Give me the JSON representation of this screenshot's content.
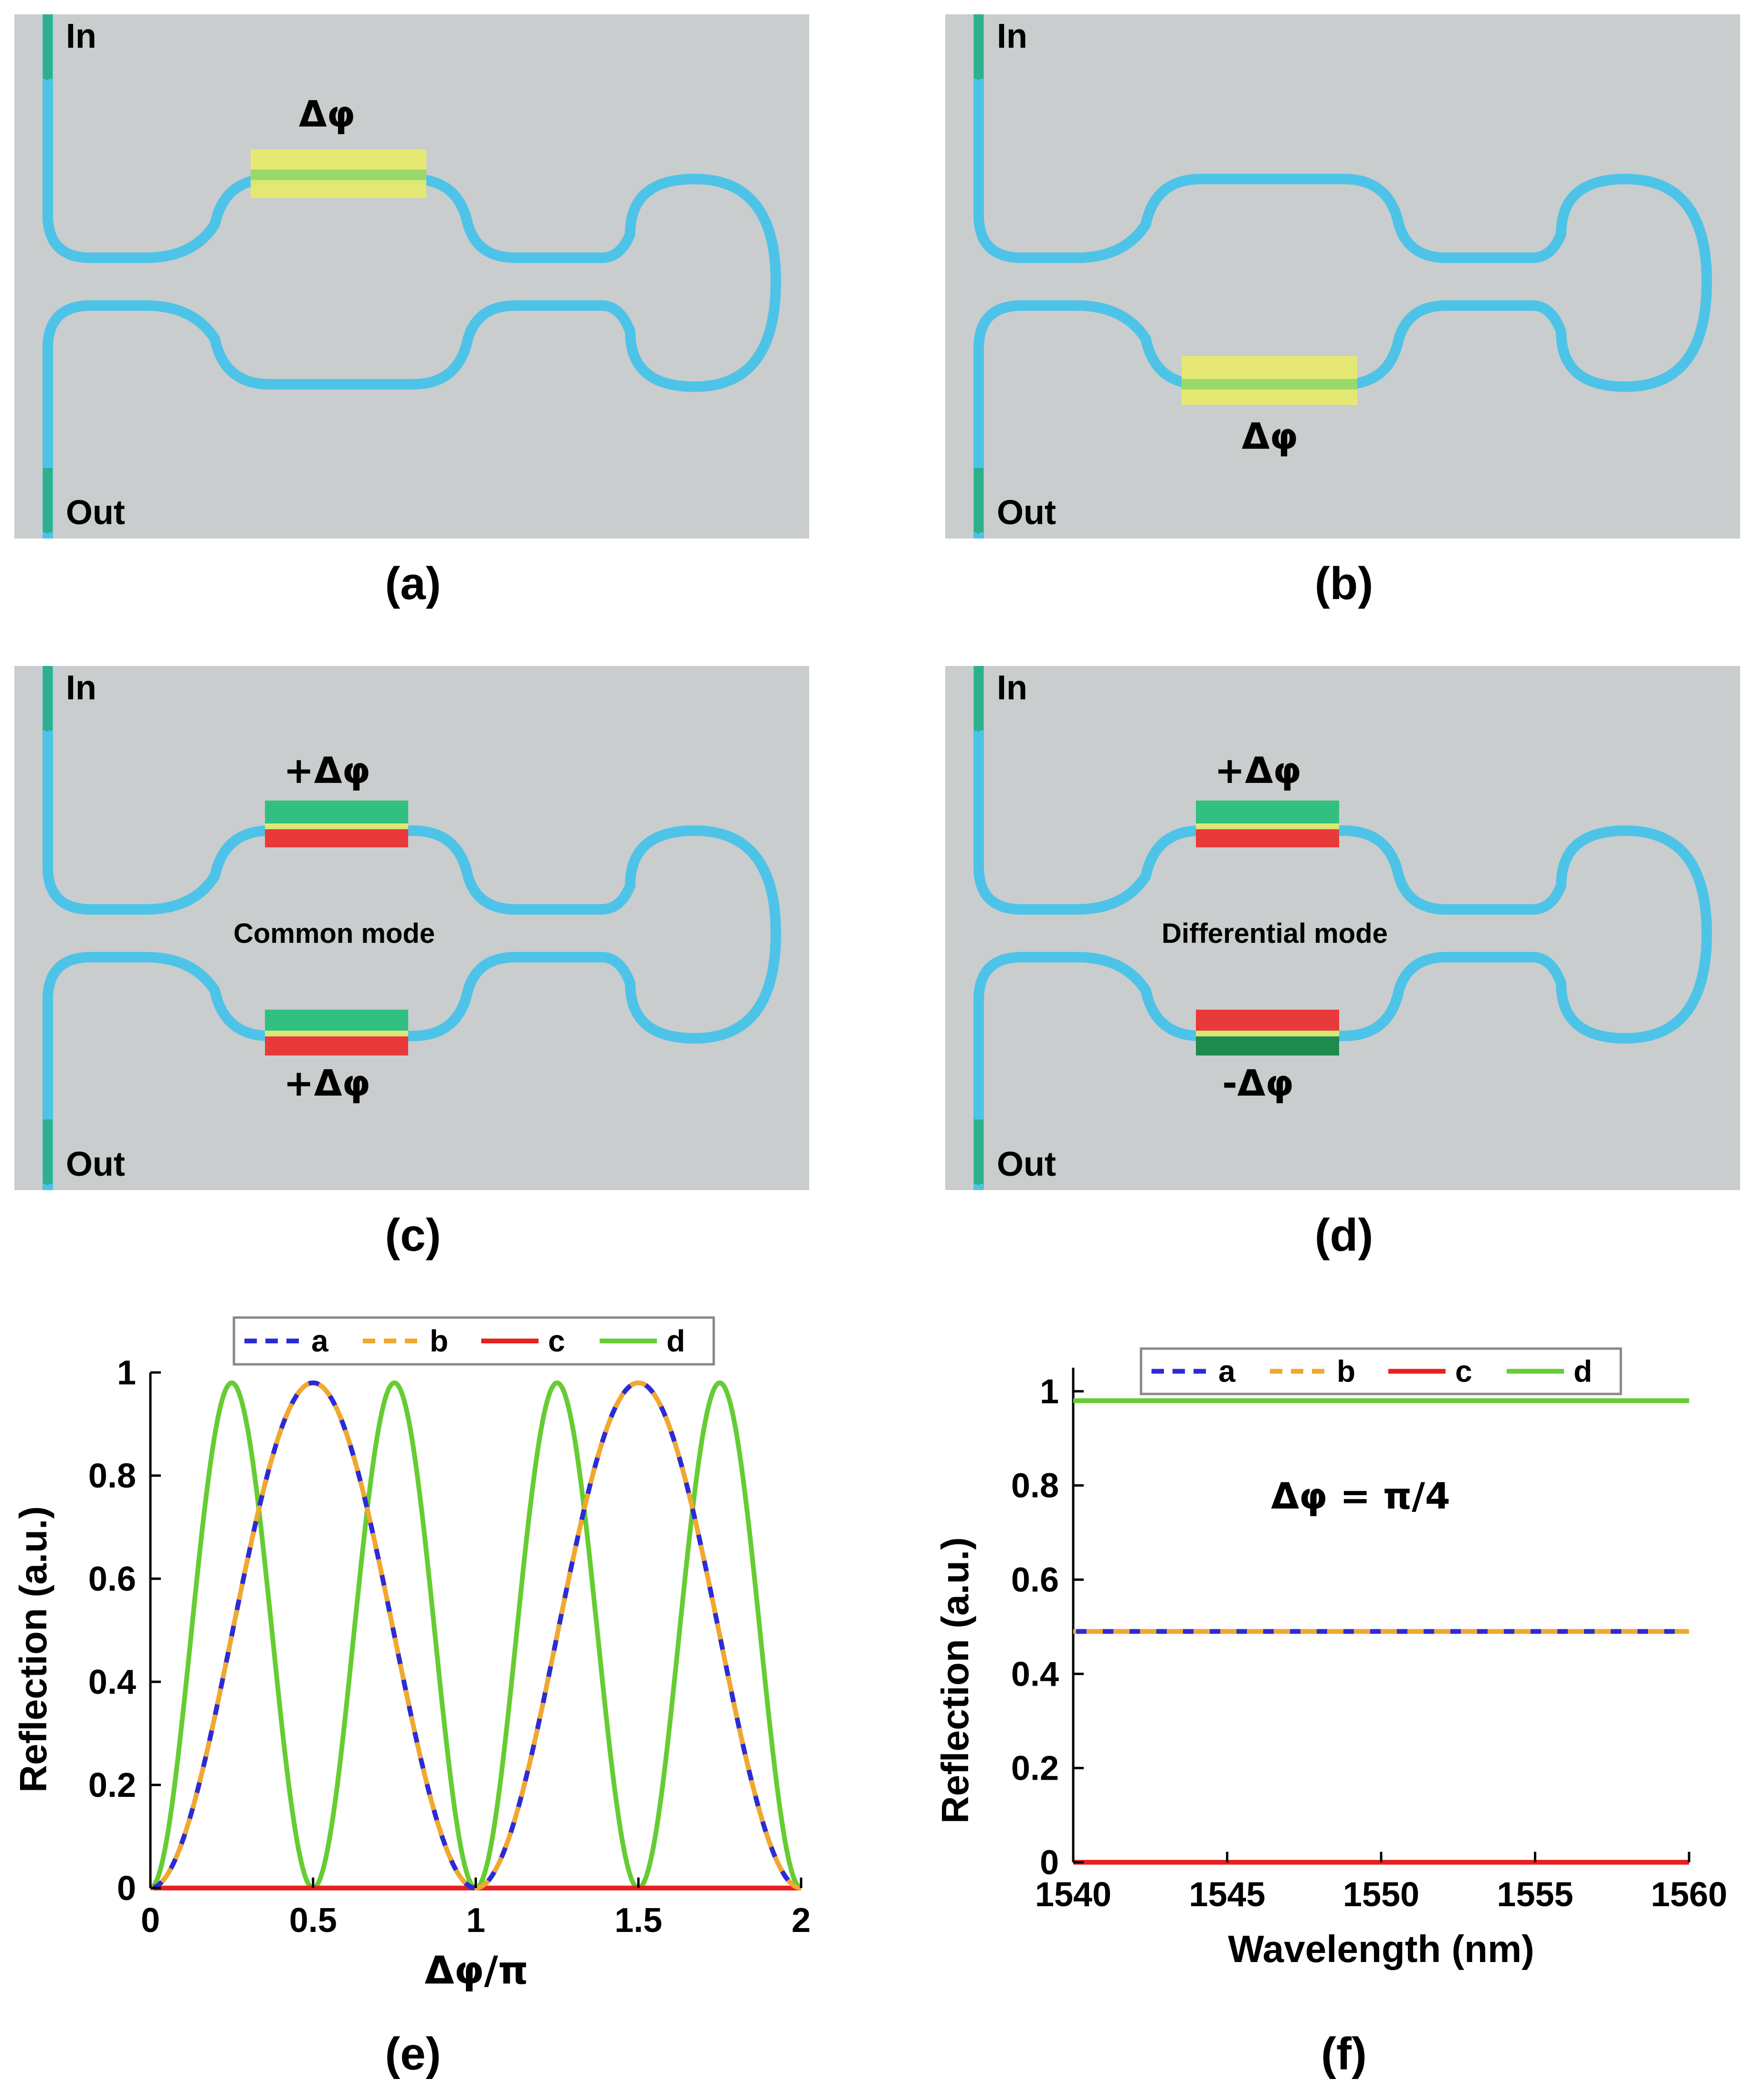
{
  "diagrams": [
    {
      "id": "a",
      "caption": "(a)",
      "in_label": "In",
      "out_label": "Out",
      "phase_top": "Δφ",
      "phase_bottom": "",
      "mode_label": ""
    },
    {
      "id": "b",
      "caption": "(b)",
      "in_label": "In",
      "out_label": "Out",
      "phase_top": "",
      "phase_bottom": "Δφ",
      "mode_label": ""
    },
    {
      "id": "c",
      "caption": "(c)",
      "in_label": "In",
      "out_label": "Out",
      "phase_top": "+Δφ",
      "phase_bottom": "+Δφ",
      "mode_label": "Common mode"
    },
    {
      "id": "d",
      "caption": "(d)",
      "in_label": "In",
      "out_label": "Out",
      "phase_top": "+Δφ",
      "phase_bottom": "-Δφ",
      "mode_label": "Differential mode"
    }
  ],
  "colors": {
    "panel_bg": "#c9cdce",
    "waveguide": "#4ec3e8",
    "arrow": "#2fb08c",
    "heater_yellow": "#e8ec6a",
    "heater_green": "#32c080",
    "heater_red": "#e83a3a",
    "series_a": "#2b2bd6",
    "series_b": "#f0a830",
    "series_c": "#e82020",
    "series_d": "#66cc33"
  },
  "chart_data": [
    {
      "id": "e",
      "type": "line",
      "caption": "(e)",
      "xlabel": "Δφ/π",
      "ylabel": "Reflection (a.u.)",
      "xlim": [
        0,
        2
      ],
      "ylim": [
        0,
        1
      ],
      "xticks": [
        "0",
        "0.5",
        "1",
        "1.5",
        "2"
      ],
      "yticks": [
        "0",
        "0.2",
        "0.4",
        "0.6",
        "0.8",
        "1"
      ],
      "legend": {
        "placement": "top",
        "entries": [
          "a",
          "b",
          "c",
          "d"
        ]
      },
      "series": [
        {
          "name": "a",
          "style": "dashed",
          "formula": "0.98*sin^2(pi*x)",
          "x": [
            0,
            0.25,
            0.5,
            0.75,
            1.0,
            1.25,
            1.5,
            1.75,
            2.0
          ],
          "y": [
            0,
            0.49,
            0.98,
            0.49,
            0,
            0.49,
            0.98,
            0.49,
            0
          ]
        },
        {
          "name": "b",
          "style": "dashed",
          "formula": "0.98*sin^2(pi*x)",
          "x": [
            0,
            0.25,
            0.5,
            0.75,
            1.0,
            1.25,
            1.5,
            1.75,
            2.0
          ],
          "y": [
            0,
            0.49,
            0.98,
            0.49,
            0,
            0.49,
            0.98,
            0.49,
            0
          ]
        },
        {
          "name": "c",
          "style": "solid",
          "formula": "0",
          "x": [
            0,
            2
          ],
          "y": [
            0,
            0
          ]
        },
        {
          "name": "d",
          "style": "solid",
          "formula": "0.98*sin^2(2*pi*x)",
          "x": [
            0,
            0.25,
            0.5,
            0.75,
            1.0,
            1.25,
            1.5,
            1.75,
            2.0
          ],
          "y": [
            0,
            0.98,
            0,
            0.98,
            0,
            0.98,
            0,
            0.98,
            0
          ]
        }
      ]
    },
    {
      "id": "f",
      "type": "line",
      "caption": "(f)",
      "xlabel": "Wavelength (nm)",
      "ylabel": "Reflection (a.u.)",
      "annotation": "Δφ = π/4",
      "xlim": [
        1540,
        1560
      ],
      "ylim": [
        0,
        1.05
      ],
      "xticks": [
        "1540",
        "1545",
        "1550",
        "1555",
        "1560"
      ],
      "yticks": [
        "0",
        "0.2",
        "0.4",
        "0.6",
        "0.8",
        "1"
      ],
      "legend": {
        "placement": "top",
        "entries": [
          "a",
          "b",
          "c",
          "d"
        ]
      },
      "series": [
        {
          "name": "a",
          "style": "dashed",
          "x": [
            1540,
            1560
          ],
          "y": [
            0.49,
            0.49
          ]
        },
        {
          "name": "b",
          "style": "dashed",
          "x": [
            1540,
            1560
          ],
          "y": [
            0.49,
            0.49
          ]
        },
        {
          "name": "c",
          "style": "solid",
          "x": [
            1540,
            1560
          ],
          "y": [
            0,
            0
          ]
        },
        {
          "name": "d",
          "style": "solid",
          "x": [
            1540,
            1560
          ],
          "y": [
            0.98,
            0.98
          ]
        }
      ]
    }
  ]
}
